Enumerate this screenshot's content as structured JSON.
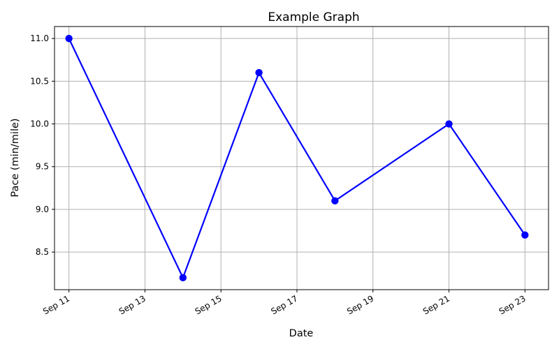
{
  "chart_data": {
    "type": "line",
    "title": "Example Graph",
    "xlabel": "Date",
    "ylabel": "Pace (min/mile)",
    "x": [
      "Sep 11",
      "Sep 14",
      "Sep 16",
      "Sep 18",
      "Sep 21",
      "Sep 23"
    ],
    "series": [
      {
        "values": [
          11.0,
          8.2,
          10.6,
          9.1,
          10.0,
          8.7
        ],
        "color": "#0000ff",
        "marker": "circle"
      }
    ],
    "xticks": [
      "Sep 11",
      "Sep 13",
      "Sep 15",
      "Sep 17",
      "Sep 19",
      "Sep 21",
      "Sep 23"
    ],
    "yticks": [
      "8.5",
      "9.0",
      "9.5",
      "10.0",
      "10.5",
      "11.0"
    ],
    "xlim": [
      "Sep 10.62",
      "Sep 23.62"
    ],
    "ylim": [
      8.06,
      11.14
    ],
    "grid": true
  }
}
